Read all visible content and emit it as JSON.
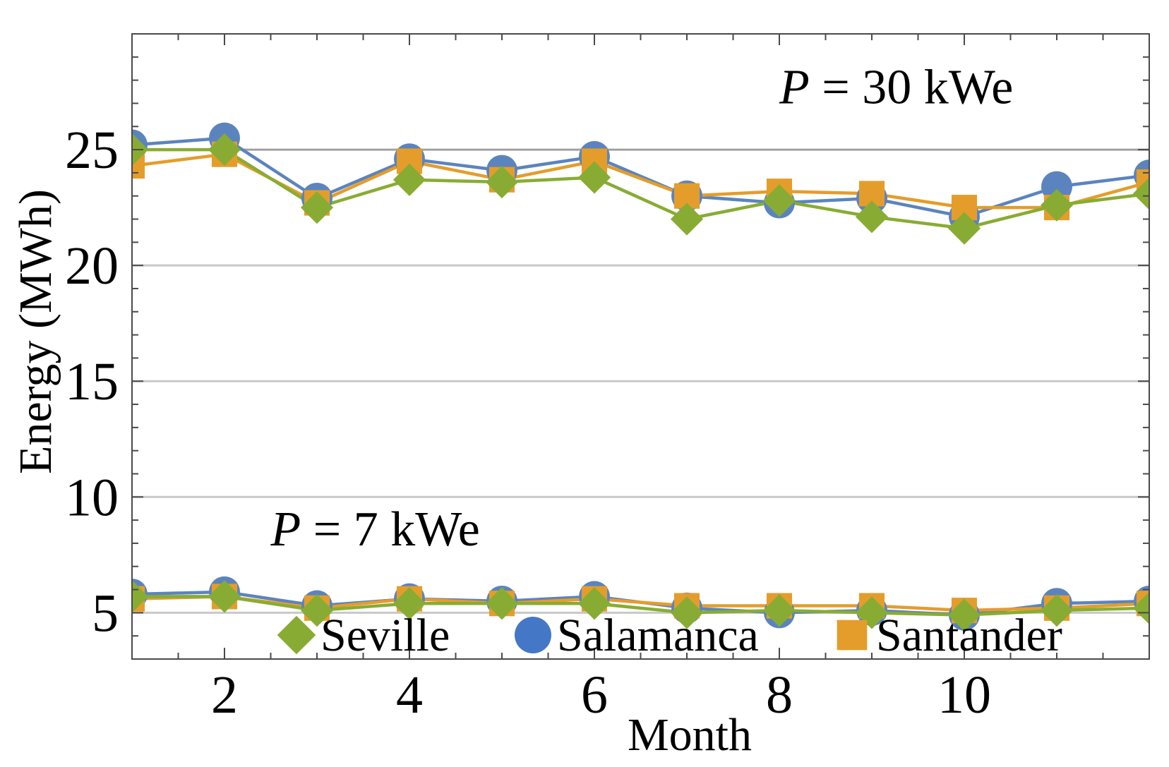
{
  "chart_data": {
    "type": "line",
    "title": "",
    "xlabel": "Month",
    "ylabel": "Energy (MWh)",
    "xlim": [
      1,
      12
    ],
    "ylim": [
      3,
      30
    ],
    "xticks": [
      2,
      4,
      6,
      8,
      10
    ],
    "yticks": [
      5,
      10,
      15,
      20,
      25
    ],
    "gridlines_y": [
      5,
      10,
      15,
      20,
      25
    ],
    "x": [
      1,
      2,
      3,
      4,
      5,
      6,
      7,
      8,
      9,
      10,
      11,
      12
    ],
    "annotations": [
      {
        "italic": "P",
        "text": " = 30 kWe",
        "x": 8.0,
        "y": 27.0
      },
      {
        "italic": "P",
        "text": " = 7 kWe",
        "x": 2.5,
        "y": 7.9
      }
    ],
    "legend_position": "bottom",
    "series": [
      {
        "name": "Seville",
        "marker": "diamond",
        "color": "#88ac33",
        "group": "30 kWe",
        "values": [
          25.0,
          25.0,
          22.5,
          23.7,
          23.6,
          23.8,
          22.0,
          22.8,
          22.1,
          21.6,
          22.6,
          23.1
        ]
      },
      {
        "name": "Salamanca",
        "marker": "circle",
        "color": "#5b84be",
        "group": "30 kWe",
        "values": [
          25.2,
          25.5,
          22.9,
          24.6,
          24.1,
          24.7,
          23.0,
          22.7,
          22.9,
          22.1,
          23.4,
          23.9
        ]
      },
      {
        "name": "Santander",
        "marker": "square",
        "color": "#e49d2b",
        "group": "30 kWe",
        "values": [
          24.3,
          24.8,
          22.7,
          24.5,
          23.7,
          24.5,
          23.0,
          23.2,
          23.1,
          22.5,
          22.5,
          23.6
        ]
      },
      {
        "name": "Seville",
        "marker": "diamond",
        "color": "#88ac33",
        "group": "7 kWe",
        "values": [
          5.7,
          5.7,
          5.1,
          5.4,
          5.4,
          5.4,
          5.0,
          5.1,
          5.0,
          4.9,
          5.1,
          5.2
        ]
      },
      {
        "name": "Salamanca",
        "marker": "circle",
        "color": "#5b84be",
        "group": "7 kWe",
        "values": [
          5.8,
          5.9,
          5.3,
          5.6,
          5.5,
          5.7,
          5.2,
          5.0,
          5.1,
          4.9,
          5.4,
          5.5
        ]
      },
      {
        "name": "Santander",
        "marker": "square",
        "color": "#e49d2b",
        "group": "7 kWe",
        "values": [
          5.6,
          5.7,
          5.2,
          5.6,
          5.4,
          5.6,
          5.3,
          5.3,
          5.3,
          5.1,
          5.2,
          5.4
        ]
      }
    ],
    "legend": [
      {
        "name": "Seville",
        "marker": "diamond",
        "color": "#88ac33"
      },
      {
        "name": "Salamanca",
        "marker": "circle",
        "color": "#4478c6"
      },
      {
        "name": "Santander",
        "marker": "square",
        "color": "#e49d2b"
      }
    ]
  },
  "colors": {
    "frame": "#4a4a4a",
    "grid": "#c8c8c8",
    "grid_strong": "#a0a0a0"
  }
}
